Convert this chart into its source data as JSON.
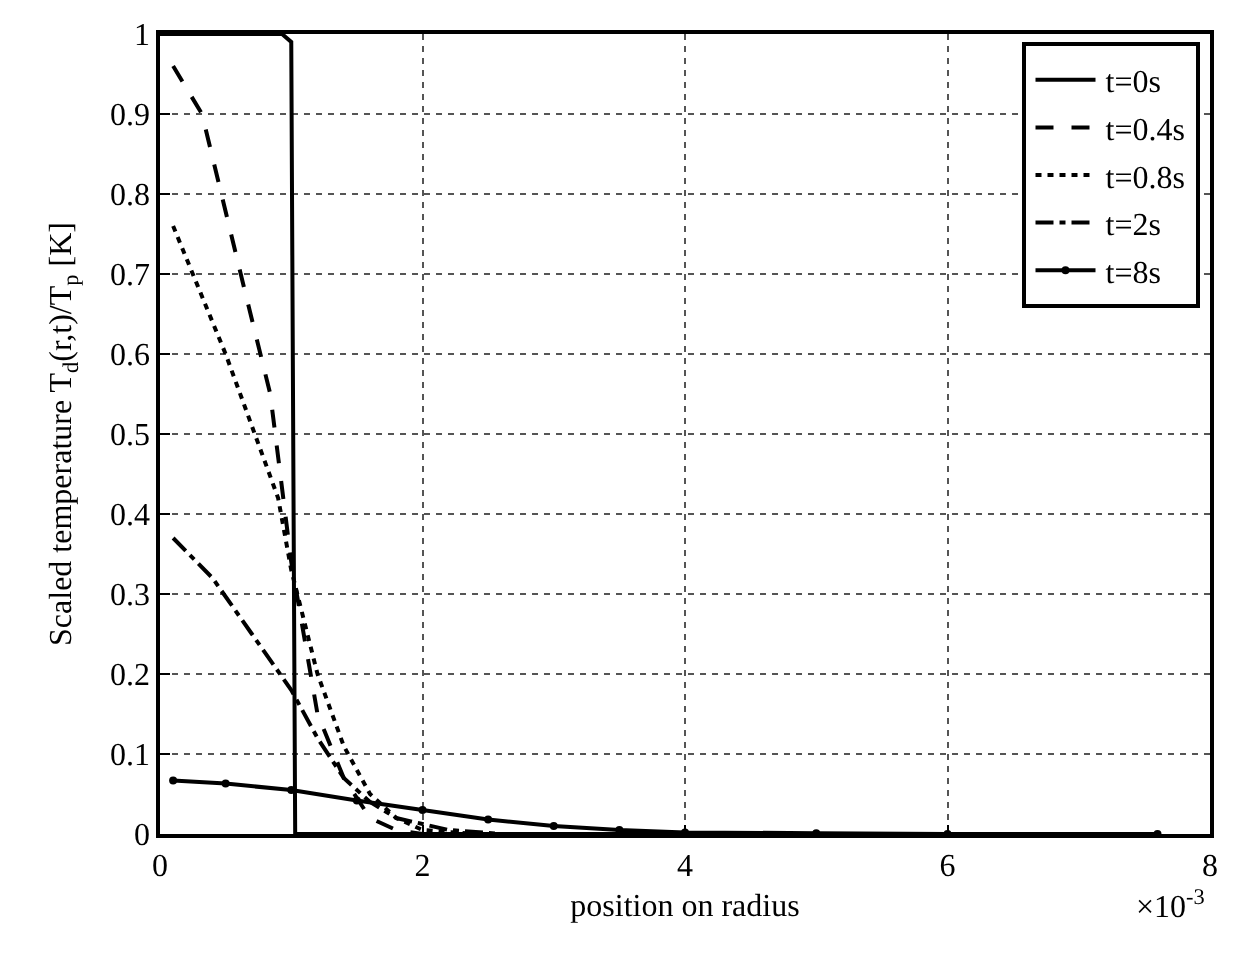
{
  "chart_data": {
    "type": "line",
    "xlabel": "position on radius",
    "ylabel": "Scaled temperature T$_{d}$(r,t)/T$_{p}$ [K]",
    "annotations": [
      "×10$^{-3}$"
    ],
    "xlim": [
      0,
      8
    ],
    "xticks": [
      0,
      2,
      4,
      6,
      8
    ],
    "ylim": [
      0,
      1
    ],
    "yticks": [
      0,
      0.1,
      0.2,
      0.3,
      0.4,
      0.5,
      0.6,
      0.7,
      0.8,
      0.9,
      1
    ],
    "grid": true,
    "legend": "top right",
    "series": [
      {
        "name": "t=0s",
        "color": "#000000",
        "line_style": "solid",
        "x": [
          0,
          0.93,
          1.0,
          1.03,
          7.6
        ],
        "values": [
          1,
          1,
          0.99,
          0,
          0
        ]
      },
      {
        "name": "t=0.4s",
        "color": "#000000",
        "line_style": "dashed",
        "x": [
          0.1,
          0.32,
          0.63,
          0.84,
          1.0,
          1.2,
          1.4,
          1.6,
          1.8,
          2.0
        ],
        "values": [
          0.96,
          0.9,
          0.69,
          0.55,
          0.34,
          0.15,
          0.07,
          0.02,
          0.005,
          0
        ]
      },
      {
        "name": "t=0.8s",
        "color": "#000000",
        "line_style": "dotted",
        "x": [
          0.1,
          0.5,
          0.9,
          1.0,
          1.2,
          1.4,
          1.6,
          1.8,
          2.0,
          2.4
        ],
        "values": [
          0.76,
          0.6,
          0.42,
          0.33,
          0.2,
          0.11,
          0.05,
          0.02,
          0.005,
          0
        ]
      },
      {
        "name": "t=2s",
        "color": "#000000",
        "line_style": "dashdot",
        "x": [
          0.1,
          0.4,
          0.7,
          1.0,
          1.2,
          1.4,
          1.6,
          1.8,
          2.2,
          2.6
        ],
        "values": [
          0.37,
          0.32,
          0.25,
          0.18,
          0.12,
          0.07,
          0.04,
          0.02,
          0.005,
          0
        ]
      },
      {
        "name": "t=8s",
        "color": "#000000",
        "line_style": "solid",
        "marker": "circle",
        "x": [
          0.1,
          0.5,
          1.0,
          1.5,
          2.0,
          2.5,
          3.0,
          3.5,
          4.0,
          5.0,
          6.0,
          7.6
        ],
        "values": [
          0.067,
          0.063,
          0.055,
          0.042,
          0.03,
          0.018,
          0.01,
          0.005,
          0.002,
          0.001,
          0,
          0
        ]
      }
    ]
  }
}
